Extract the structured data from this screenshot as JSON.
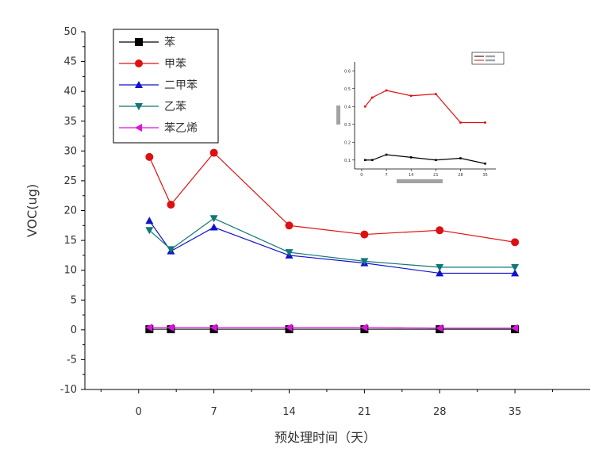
{
  "chart_data": [
    {
      "type": "line",
      "xlabel": "预处理时间（天）",
      "ylabel": "VOC(ug)",
      "xlim": [
        -5,
        42
      ],
      "ylim": [
        -10,
        50
      ],
      "x_ticks": [
        0,
        7,
        14,
        21,
        28,
        35
      ],
      "y_ticks": [
        -10,
        -5,
        0,
        5,
        10,
        15,
        20,
        25,
        30,
        35,
        40,
        45,
        50
      ],
      "legend_position": "top-left",
      "x": [
        1,
        3,
        7,
        14,
        21,
        28,
        35
      ],
      "series": [
        {
          "name": "苯",
          "color": "#000000",
          "marker": "square",
          "values": [
            0.1,
            0.1,
            0.1,
            0.1,
            0.1,
            0.1,
            0.1
          ]
        },
        {
          "name": "甲苯",
          "color": "#dd1111",
          "marker": "circle",
          "values": [
            29,
            21,
            29.7,
            17.5,
            16,
            16.7,
            14.7
          ]
        },
        {
          "name": "二甲苯",
          "color": "#1111cc",
          "marker": "triangle-up",
          "values": [
            18.3,
            13.2,
            17.2,
            12.5,
            11.2,
            9.5,
            9.5
          ]
        },
        {
          "name": "乙苯",
          "color": "#117777",
          "marker": "triangle-down",
          "values": [
            16.7,
            13.5,
            18.7,
            13,
            11.5,
            10.5,
            10.5
          ]
        },
        {
          "name": "苯乙烯",
          "color": "#dd11dd",
          "marker": "triangle-left",
          "values": [
            0.4,
            0.4,
            0.4,
            0.4,
            0.4,
            0.3,
            0.3
          ]
        }
      ]
    },
    {
      "type": "line",
      "inset": true,
      "legend_position": "top-right",
      "x_ticks": [
        0,
        7,
        14,
        21,
        28,
        35
      ],
      "y_ticks": [
        0.1,
        0.2,
        0.3,
        0.4,
        0.5,
        0.6
      ],
      "xlim": [
        -2,
        38
      ],
      "ylim": [
        0.05,
        0.65
      ],
      "x": [
        1,
        3,
        7,
        14,
        21,
        28,
        35
      ],
      "series": [
        {
          "color": "#000000",
          "values": [
            0.1,
            0.1,
            0.13,
            0.115,
            0.1,
            0.11,
            0.08
          ]
        },
        {
          "color": "#dd1111",
          "values": [
            0.4,
            0.45,
            0.49,
            0.46,
            0.47,
            0.31,
            0.31
          ]
        }
      ]
    }
  ]
}
